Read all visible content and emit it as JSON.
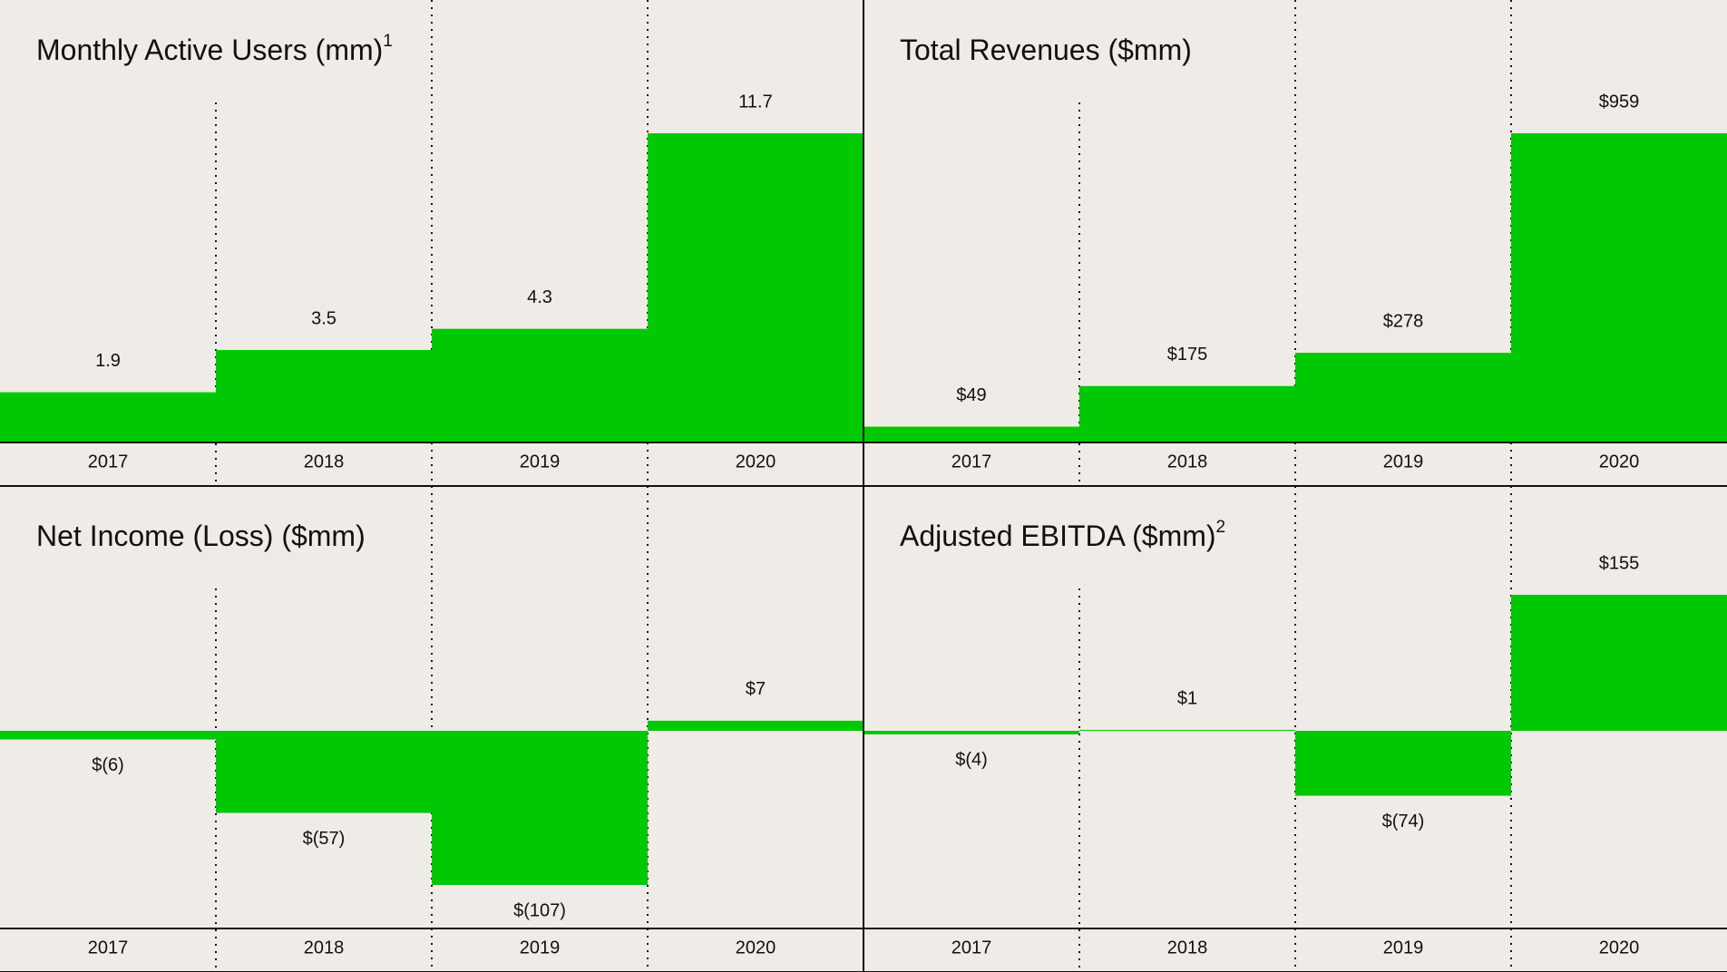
{
  "chart_data": [
    {
      "type": "bar",
      "title": "Monthly Active Users (mm)",
      "footnote": "1",
      "color": "#00c805",
      "categories": [
        "2017",
        "2018",
        "2019",
        "2020"
      ],
      "values": [
        1.9,
        3.5,
        4.3,
        11.7
      ],
      "value_labels": [
        "1.9",
        "3.5",
        "4.3",
        "11.7"
      ]
    },
    {
      "type": "bar",
      "title": "Total Revenues ($mm)",
      "color": "#00c805",
      "categories": [
        "2017",
        "2018",
        "2019",
        "2020"
      ],
      "values": [
        49,
        175,
        278,
        959
      ],
      "value_labels": [
        "$49",
        "$175",
        "$278",
        "$959"
      ]
    },
    {
      "type": "bar",
      "title": "Net Income (Loss) ($mm)",
      "color": "#00c805",
      "categories": [
        "2017",
        "2018",
        "2019",
        "2020"
      ],
      "values": [
        -6,
        -57,
        -107,
        7
      ],
      "value_labels": [
        "$(6)",
        "$(57)",
        "$(107)",
        "$7"
      ]
    },
    {
      "type": "bar",
      "title": "Adjusted EBITDA ($mm)",
      "footnote": "2",
      "color": "#00c805",
      "categories": [
        "2017",
        "2018",
        "2019",
        "2020"
      ],
      "values": [
        -4,
        1,
        -74,
        155
      ],
      "value_labels": [
        "$(4)",
        "$1",
        "$(74)",
        "$155"
      ]
    }
  ]
}
